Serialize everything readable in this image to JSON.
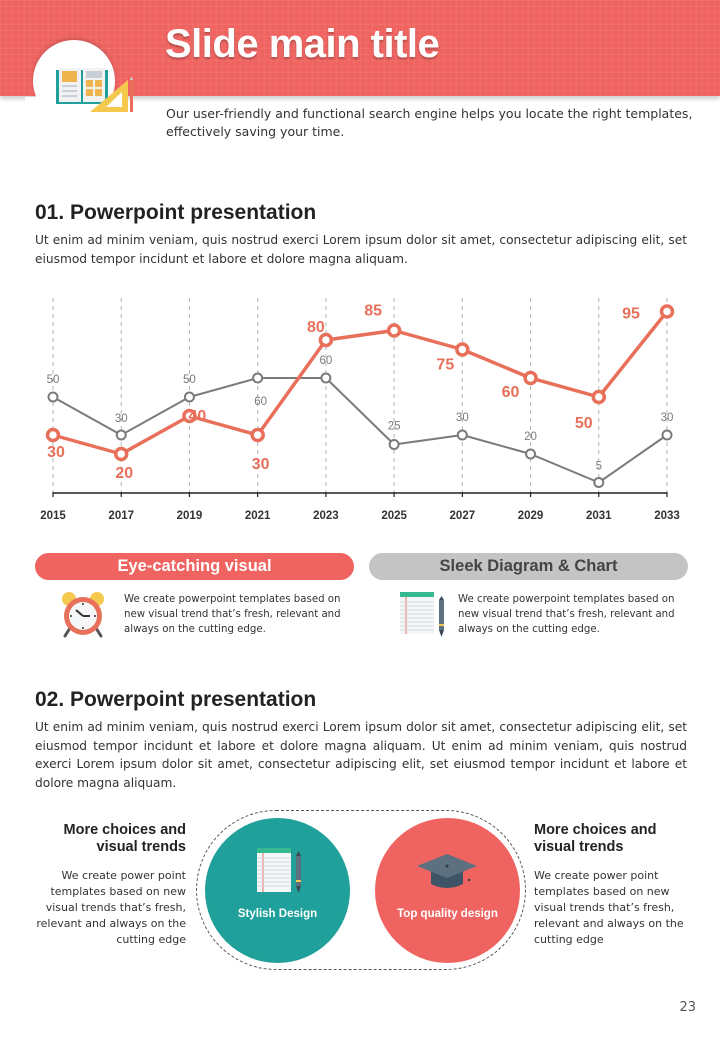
{
  "header": {
    "title": "Slide main title",
    "subtitle": "Our user-friendly and functional search engine helps you locate the right templates, effectively saving your time.",
    "icon": "book-ruler-icon",
    "colors": {
      "band": "#ef6461"
    }
  },
  "section1": {
    "title": "01. Powerpoint presentation",
    "text": "Ut enim ad minim veniam, quis nostrud exerci  Lorem ipsum dolor sit amet, consectetur adipiscing elit, set eiusmod tempor incidunt et labore et dolore magna aliquam."
  },
  "chart_data": {
    "type": "line",
    "title": "",
    "xlabel": "",
    "ylabel": "",
    "x": [
      "2015",
      "2017",
      "2019",
      "2021",
      "2023",
      "2025",
      "2027",
      "2029",
      "2031",
      "2033"
    ],
    "ylim": [
      0,
      100
    ],
    "grid": "vertical dashed",
    "legend": "none",
    "series": [
      {
        "name": "orange",
        "color": "#e8705a",
        "values": [
          30,
          20,
          40,
          30,
          80,
          85,
          75,
          60,
          50,
          95
        ],
        "labels": [
          "30",
          "20",
          "40",
          "30",
          "80",
          "85",
          "75",
          "60",
          "50",
          "95"
        ]
      },
      {
        "name": "grey",
        "color": "#7a7a7a",
        "values": [
          50,
          30,
          50,
          60,
          60,
          25,
          30,
          20,
          5,
          30
        ],
        "labels": [
          "50",
          "30",
          "50",
          "60",
          "60",
          "25",
          "30",
          "20",
          "5",
          "30"
        ]
      }
    ]
  },
  "features": [
    {
      "label": "Eye-catching visual",
      "text": "We create powerpoint templates based on new visual trend that’s fresh, relevant and always on the cutting edge.",
      "icon": "alarm-clock-icon",
      "color": "#ef6461"
    },
    {
      "label": "Sleek Diagram & Chart",
      "text": "We create powerpoint templates based on new visual trend that’s fresh, relevant and always on the cutting edge.",
      "icon": "notepad-pen-icon",
      "color": "#c4c4c4"
    }
  ],
  "section2": {
    "title": "02. Powerpoint presentation",
    "text": "Ut enim ad minim veniam, quis nostrud exerci  Lorem ipsum dolor sit amet, consectetur adipiscing elit, set eiusmod tempor incidunt et labore et dolore magna aliquam. Ut enim ad minim veniam, quis nostrud exerci  Lorem ipsum dolor sit amet, consectetur adipiscing elit, set eiusmod tempor incidunt et labore et dolore magna aliquam."
  },
  "highlights": {
    "left": {
      "title": "More choices and visual trends",
      "text": "We create power point templates based on new visual trends that’s fresh, relevant and always on the cutting edge"
    },
    "right": {
      "title": "More choices and visual trends",
      "text": "We create power point templates based on new visual trends that’s fresh, relevant and always on the cutting edge"
    },
    "circles": [
      {
        "label": "Stylish Design",
        "icon": "notepad-pen-icon",
        "color": "#1fa09a"
      },
      {
        "label": "Top quality design",
        "icon": "graduation-cap-icon",
        "color": "#ef6461"
      }
    ]
  },
  "page_number": "23"
}
